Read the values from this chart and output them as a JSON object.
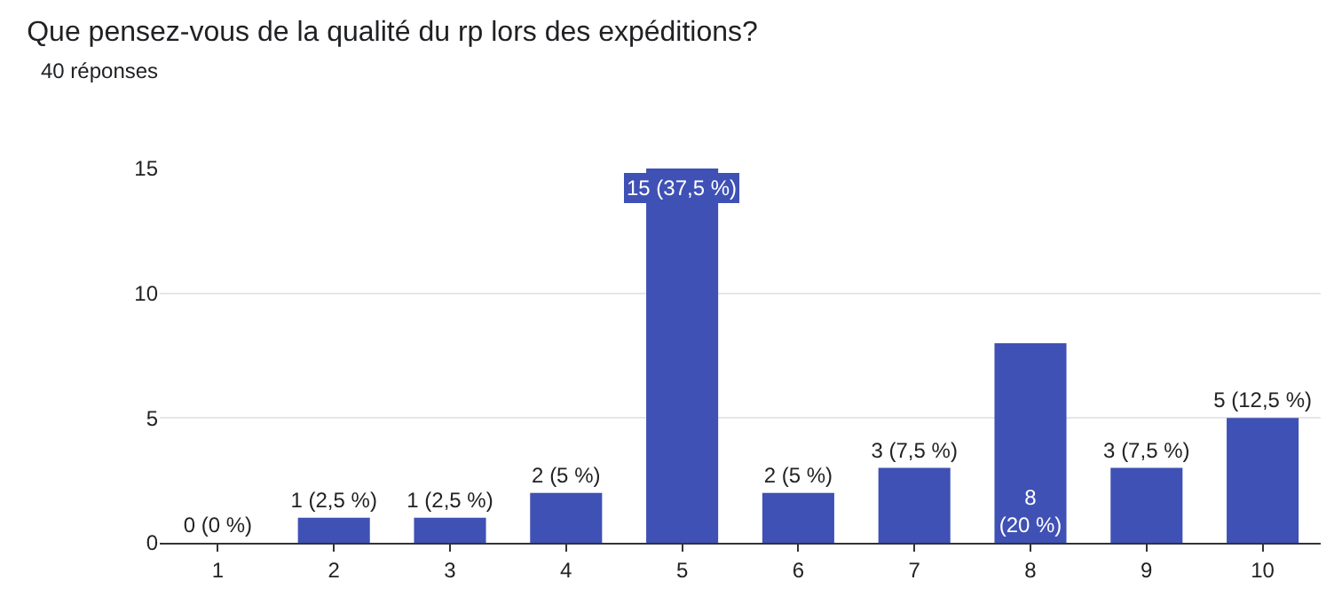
{
  "chart_data": {
    "type": "bar",
    "title": "Que pensez-vous de la qualité du rp lors des expéditions?",
    "subtitle": "40 réponses",
    "categories": [
      "1",
      "2",
      "3",
      "4",
      "5",
      "6",
      "7",
      "8",
      "9",
      "10"
    ],
    "values": [
      0,
      1,
      1,
      2,
      15,
      2,
      3,
      8,
      3,
      5
    ],
    "value_labels": [
      "0 (0 %)",
      "1 (2,5 %)",
      "1 (2,5 %)",
      "2 (5 %)",
      "15 (37,5 %)",
      "2 (5 %)",
      "3 (7,5 %)",
      "8 (20 %)",
      "3 (7,5 %)",
      "5 (12,5 %)"
    ],
    "color": "#3f51b5",
    "ylim": [
      0,
      15
    ],
    "yticks": [
      0,
      5,
      10,
      15
    ],
    "grid": "y"
  }
}
